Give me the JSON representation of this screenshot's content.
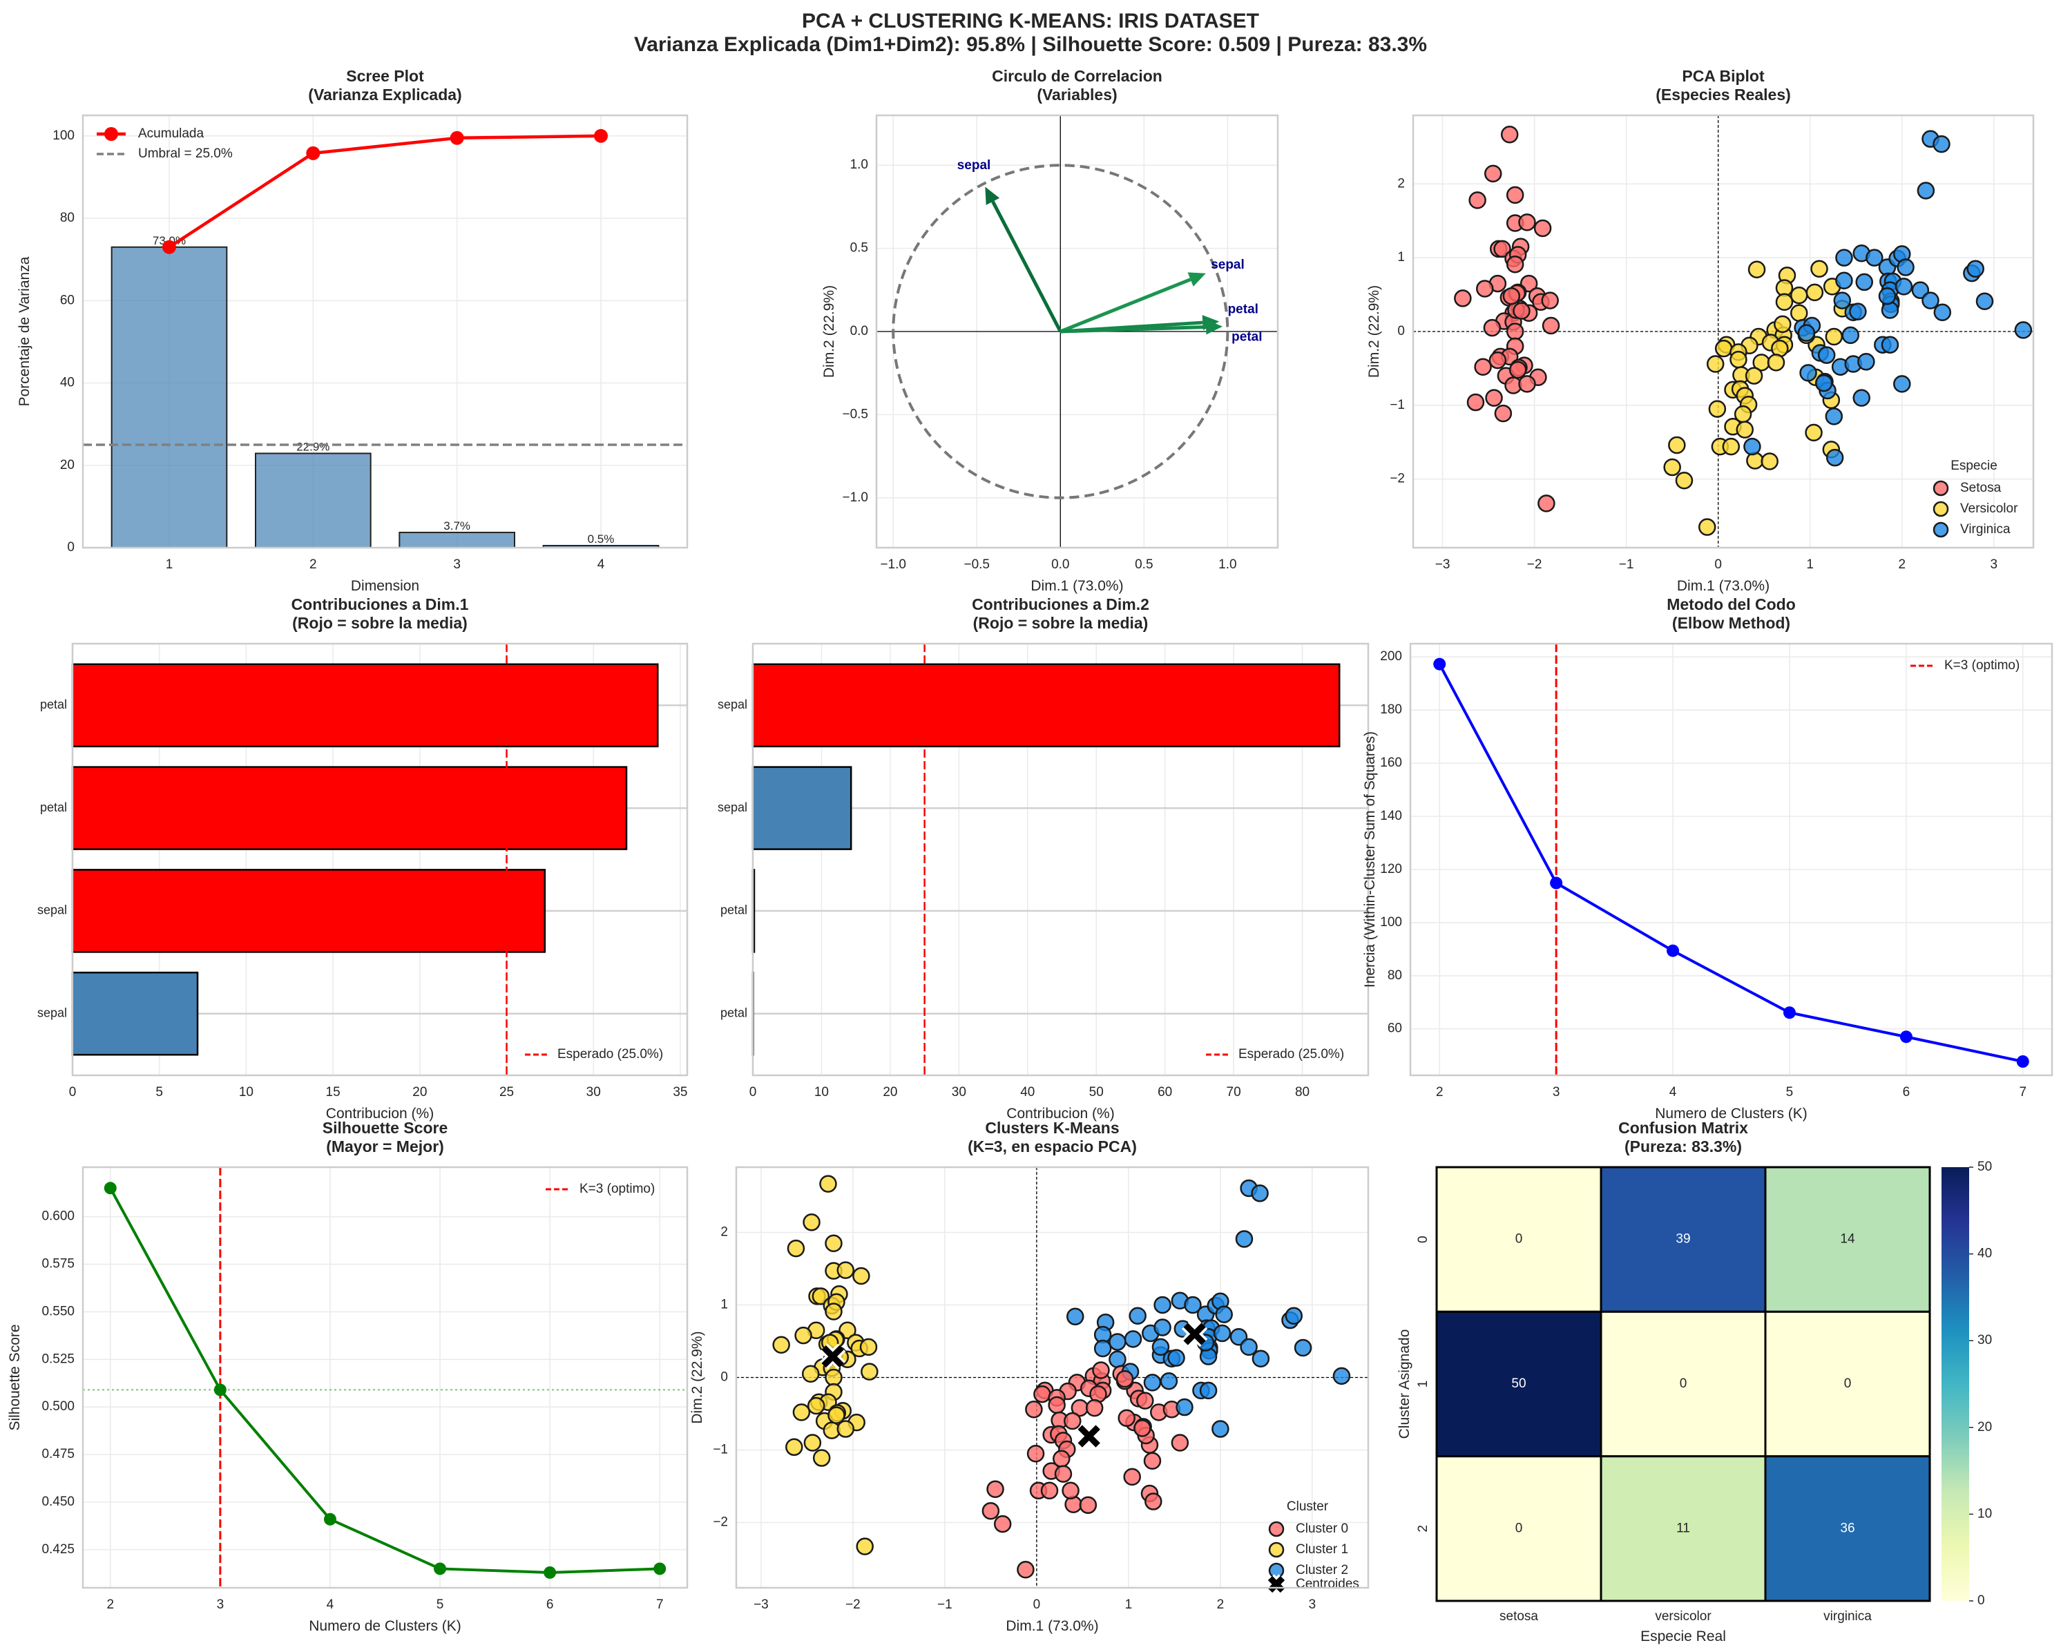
{
  "suptitle": {
    "line1": "PCA + CLUSTERING K-MEANS: IRIS DATASET",
    "line2": "Varianza Explicada (Dim1+Dim2): 95.8% | Silhouette Score: 0.509 | Pureza: 83.3%"
  },
  "colors": {
    "Setosa": "#ff6b6b",
    "Versicolor": "#fdd835",
    "Virginica": "#1e88e5",
    "Cluster 0": "#ff6b6b",
    "Cluster 1": "#fdd835",
    "Cluster 2": "#1e88e5",
    "bar": "#4682b4",
    "above_mean": "#ff0000"
  },
  "chart_data": [
    {
      "type": "bar",
      "title": "Scree Plot",
      "subtitle": "(Varianza Explicada)",
      "xlabel": "Dimension",
      "ylabel": "Porcentaje de Varianza",
      "categories": [
        1,
        2,
        3,
        4
      ],
      "values": [
        73.0,
        22.9,
        3.7,
        0.5
      ],
      "bar_labels": [
        "73.0%",
        "22.9%",
        "3.7%",
        "0.5%"
      ],
      "cumulative": {
        "name": "Acumulada",
        "values": [
          73.0,
          95.8,
          99.5,
          100.0
        ]
      },
      "threshold": {
        "name": "Umbral = 25.0%",
        "value": 25.0
      },
      "xlim": [
        0.4,
        4.6
      ],
      "ylim": [
        0,
        105
      ],
      "xticks": [
        "1",
        "2",
        "3",
        "4"
      ],
      "yticks": [
        "0",
        "20",
        "40",
        "60",
        "80",
        "100"
      ],
      "legend": "top-left",
      "grid": true
    },
    {
      "type": "scatter",
      "title": "Circulo de Correlacion",
      "subtitle": "(Variables)",
      "xlabel": "Dim.1 (73.0%)",
      "ylabel": "Dim.2 (22.9%)",
      "vectors": [
        {
          "label": "sepal",
          "x": -0.45,
          "y": 0.87,
          "color": "#0b6e3a"
        },
        {
          "label": "sepal",
          "x": 0.87,
          "y": 0.35,
          "color": "#1a9550"
        },
        {
          "label": "petal",
          "x": 0.95,
          "y": 0.06,
          "color": "#15874a"
        },
        {
          "label": "petal",
          "x": 0.97,
          "y": 0.03,
          "color": "#168a4b"
        }
      ],
      "unit_circle": true,
      "xlim": [
        -1.1,
        1.3
      ],
      "ylim": [
        -1.3,
        1.3
      ],
      "xticks": [
        "−1.0",
        "−0.5",
        "0.0",
        "0.5",
        "1.0"
      ],
      "yticks": [
        "−1.0",
        "−0.5",
        "0.0",
        "0.5",
        "1.0"
      ],
      "grid": true
    },
    {
      "type": "scatter",
      "title": "PCA Biplot",
      "subtitle": "(Especies Reales)",
      "xlabel": "Dim.1 (73.0%)",
      "ylabel": "Dim.2 (22.9%)",
      "legend_title": "Especie",
      "legend": "bottom-right",
      "xlim": [
        -3.32,
        3.43
      ],
      "ylim": [
        -2.93,
        2.93
      ],
      "xticks": [
        "−3",
        "−2",
        "−1",
        "0",
        "1",
        "2",
        "3"
      ],
      "yticks": [
        "−2",
        "−1",
        "0",
        "1",
        "2"
      ],
      "series": [
        {
          "name": "Setosa",
          "points": [
            [
              -2.27,
              2.67
            ],
            [
              -2.45,
              2.14
            ],
            [
              -2.21,
              1.85
            ],
            [
              -2.62,
              1.78
            ],
            [
              -2.21,
              1.47
            ],
            [
              -2.08,
              1.48
            ],
            [
              -1.91,
              1.4
            ],
            [
              -2.39,
              1.12
            ],
            [
              -2.35,
              1.12
            ],
            [
              -2.15,
              1.15
            ],
            [
              -2.23,
              0.99
            ],
            [
              -2.18,
              1.04
            ],
            [
              -2.21,
              0.91
            ],
            [
              -2.4,
              0.65
            ],
            [
              -2.54,
              0.58
            ],
            [
              -2.06,
              0.65
            ],
            [
              -2.78,
              0.45
            ],
            [
              -2.28,
              0.46
            ],
            [
              -2.18,
              0.53
            ],
            [
              -1.97,
              0.48
            ],
            [
              -1.93,
              0.4
            ],
            [
              -1.83,
              0.42
            ],
            [
              -2.23,
              0.25
            ],
            [
              -2.16,
              0.31
            ],
            [
              -2.06,
              0.25
            ],
            [
              -2.33,
              0.14
            ],
            [
              -2.23,
              0.13
            ],
            [
              -2.46,
              0.05
            ],
            [
              -2.21,
              0.0
            ],
            [
              -1.82,
              0.08
            ],
            [
              -2.21,
              -0.2
            ],
            [
              -2.37,
              -0.34
            ],
            [
              -2.27,
              -0.34
            ],
            [
              -2.4,
              -0.39
            ],
            [
              -2.56,
              -0.48
            ],
            [
              -2.11,
              -0.46
            ],
            [
              -2.17,
              -0.49
            ],
            [
              -2.31,
              -0.6
            ],
            [
              -1.96,
              -0.62
            ],
            [
              -2.23,
              -0.73
            ],
            [
              -2.08,
              -0.71
            ],
            [
              -2.44,
              -0.9
            ],
            [
              -2.64,
              -0.96
            ],
            [
              -2.34,
              -1.11
            ],
            [
              -1.87,
              -2.33
            ],
            [
              -2.19,
              0.52
            ],
            [
              -2.2,
              0.29
            ],
            [
              -2.14,
              0.28
            ],
            [
              -2.25,
              0.48
            ],
            [
              -2.18,
              -0.52
            ]
          ]
        },
        {
          "name": "Versicolor",
          "points": [
            [
              0.42,
              0.84
            ],
            [
              0.75,
              0.76
            ],
            [
              1.1,
              0.85
            ],
            [
              0.72,
              0.59
            ],
            [
              0.88,
              0.49
            ],
            [
              1.05,
              0.53
            ],
            [
              1.24,
              0.61
            ],
            [
              0.72,
              0.4
            ],
            [
              0.88,
              0.25
            ],
            [
              1.35,
              0.31
            ],
            [
              0.62,
              0.02
            ],
            [
              0.71,
              -0.05
            ],
            [
              0.44,
              -0.07
            ],
            [
              0.57,
              -0.15
            ],
            [
              0.72,
              -0.18
            ],
            [
              0.67,
              -0.23
            ],
            [
              1.26,
              -0.07
            ],
            [
              1.07,
              -0.18
            ],
            [
              0.09,
              -0.18
            ],
            [
              0.06,
              -0.23
            ],
            [
              0.34,
              -0.19
            ],
            [
              0.22,
              -0.28
            ],
            [
              0.22,
              -0.38
            ],
            [
              -0.03,
              -0.44
            ],
            [
              0.47,
              -0.42
            ],
            [
              0.63,
              -0.42
            ],
            [
              0.25,
              -0.59
            ],
            [
              0.39,
              -0.6
            ],
            [
              1.06,
              -0.62
            ],
            [
              0.16,
              -0.79
            ],
            [
              0.24,
              -0.78
            ],
            [
              0.29,
              -0.87
            ],
            [
              0.33,
              -0.99
            ],
            [
              -0.01,
              -1.05
            ],
            [
              0.27,
              -1.12
            ],
            [
              0.16,
              -1.29
            ],
            [
              0.29,
              -1.33
            ],
            [
              1.23,
              -0.93
            ],
            [
              1.04,
              -1.37
            ],
            [
              -0.45,
              -1.54
            ],
            [
              0.02,
              -1.56
            ],
            [
              0.14,
              -1.56
            ],
            [
              1.23,
              -1.6
            ],
            [
              -0.5,
              -1.84
            ],
            [
              0.4,
              -1.75
            ],
            [
              0.56,
              -1.76
            ],
            [
              -0.37,
              -2.02
            ],
            [
              -0.12,
              -2.65
            ],
            [
              0.7,
              0.1
            ],
            [
              0.96,
              -0.05
            ]
          ]
        },
        {
          "name": "Virginica",
          "points": [
            [
              2.31,
              2.61
            ],
            [
              2.43,
              2.54
            ],
            [
              2.26,
              1.91
            ],
            [
              1.37,
              1.0
            ],
            [
              1.56,
              1.06
            ],
            [
              1.7,
              1.0
            ],
            [
              1.84,
              0.87
            ],
            [
              1.95,
              0.99
            ],
            [
              2.0,
              1.05
            ],
            [
              2.04,
              0.87
            ],
            [
              2.76,
              0.79
            ],
            [
              2.8,
              0.85
            ],
            [
              1.37,
              0.69
            ],
            [
              1.59,
              0.67
            ],
            [
              1.85,
              0.68
            ],
            [
              1.9,
              0.68
            ],
            [
              1.87,
              0.56
            ],
            [
              2.02,
              0.61
            ],
            [
              2.2,
              0.56
            ],
            [
              1.35,
              0.42
            ],
            [
              1.88,
              0.41
            ],
            [
              1.88,
              0.37
            ],
            [
              2.31,
              0.42
            ],
            [
              2.9,
              0.41
            ],
            [
              1.87,
              0.29
            ],
            [
              1.47,
              0.26
            ],
            [
              1.52,
              0.27
            ],
            [
              2.44,
              0.26
            ],
            [
              3.32,
              0.02
            ],
            [
              0.92,
              0.05
            ],
            [
              1.02,
              0.08
            ],
            [
              0.96,
              -0.02
            ],
            [
              1.44,
              -0.05
            ],
            [
              1.79,
              -0.18
            ],
            [
              1.87,
              -0.18
            ],
            [
              1.11,
              -0.29
            ],
            [
              1.18,
              -0.32
            ],
            [
              1.33,
              -0.48
            ],
            [
              1.47,
              -0.44
            ],
            [
              1.61,
              -0.41
            ],
            [
              0.98,
              -0.56
            ],
            [
              1.16,
              -0.68
            ],
            [
              1.19,
              -0.8
            ],
            [
              2.0,
              -0.71
            ],
            [
              1.56,
              -0.9
            ],
            [
              1.26,
              -1.15
            ],
            [
              0.37,
              -1.56
            ],
            [
              1.27,
              -1.71
            ],
            [
              1.15,
              -0.7
            ],
            [
              1.84,
              0.48
            ]
          ]
        }
      ]
    },
    {
      "type": "bar",
      "orientation": "horizontal",
      "title": "Contribuciones a Dim.1",
      "subtitle": "(Rojo = sobre la media)",
      "xlabel": "Contribucion (%)",
      "categories": [
        "petal",
        "petal",
        "sepal",
        "sepal"
      ],
      "values": [
        33.7,
        31.9,
        27.2,
        7.2
      ],
      "above_mean": [
        true,
        true,
        true,
        false
      ],
      "expected": {
        "name": "Esperado (25.0%)",
        "value": 25.0
      },
      "xlim": [
        0,
        35.4
      ],
      "xticks": [
        "0",
        "5",
        "10",
        "15",
        "20",
        "25",
        "30",
        "35"
      ],
      "legend": "bottom-right"
    },
    {
      "type": "bar",
      "orientation": "horizontal",
      "title": "Contribuciones a Dim.2",
      "subtitle": "(Rojo = sobre la media)",
      "xlabel": "Contribucion (%)",
      "categories": [
        "sepal",
        "sepal",
        "petal",
        "petal"
      ],
      "values": [
        85.4,
        14.3,
        0.2,
        0.0
      ],
      "above_mean": [
        true,
        false,
        false,
        false
      ],
      "expected": {
        "name": "Esperado (25.0%)",
        "value": 25.0
      },
      "xlim": [
        0,
        89.6
      ],
      "xticks": [
        "0",
        "10",
        "20",
        "30",
        "40",
        "50",
        "60",
        "70",
        "80"
      ],
      "legend": "bottom-right"
    },
    {
      "type": "line",
      "title": "Metodo del Codo",
      "subtitle": "(Elbow Method)",
      "xlabel": "Numero de Clusters (K)",
      "ylabel": "Inercia (Within-Cluster Sum of Squares)",
      "x": [
        2,
        3,
        4,
        5,
        6,
        7
      ],
      "values": [
        197.3,
        114.9,
        89.4,
        66.1,
        57.0,
        47.7
      ],
      "color": "#0000ff",
      "optimal": {
        "name": "K=3 (optimo)",
        "value": 3
      },
      "xlim": [
        1.75,
        7.25
      ],
      "ylim": [
        42.5,
        205
      ],
      "xticks": [
        "2",
        "3",
        "4",
        "5",
        "6",
        "7"
      ],
      "yticks": [
        "60",
        "80",
        "100",
        "120",
        "140",
        "160",
        "180",
        "200"
      ],
      "legend": "top-right"
    },
    {
      "type": "line",
      "title": "Silhouette Score",
      "subtitle": "(Mayor = Mejor)",
      "xlabel": "Numero de Clusters (K)",
      "ylabel": "Silhouette Score",
      "x": [
        2,
        3,
        4,
        5,
        6,
        7
      ],
      "values": [
        0.615,
        0.509,
        0.441,
        0.415,
        0.413,
        0.415
      ],
      "color": "#008000",
      "optimal": {
        "name": "K=3 (optimo)",
        "value": 3
      },
      "reference_line": 0.509,
      "xlim": [
        1.75,
        7.25
      ],
      "ylim": [
        0.405,
        0.626
      ],
      "xticks": [
        "2",
        "3",
        "4",
        "5",
        "6",
        "7"
      ],
      "yticks": [
        "0.425",
        "0.450",
        "0.475",
        "0.500",
        "0.525",
        "0.550",
        "0.575",
        "0.600"
      ],
      "legend": "top-right"
    },
    {
      "type": "scatter",
      "title": "Clusters K-Means",
      "subtitle": "(K=3, en espacio PCA)",
      "xlabel": "Dim.1 (73.0%)",
      "ylabel": "Dim.2 (22.9%)",
      "legend_title": "Cluster",
      "legend": "bottom-right",
      "cluster_names": [
        "Cluster 0",
        "Cluster 1",
        "Cluster 2"
      ],
      "centroids_label": "Centroides",
      "centroids": [
        [
          0.57,
          -0.81
        ],
        [
          -2.22,
          0.29
        ],
        [
          1.72,
          0.6
        ]
      ],
      "xlim": [
        -3.27,
        3.61
      ],
      "ylim": [
        -2.9,
        2.9
      ],
      "xticks": [
        "−3",
        "−2",
        "−1",
        "0",
        "1",
        "2",
        "3"
      ],
      "yticks": [
        "−2",
        "−1",
        "0",
        "1",
        "2"
      ]
    },
    {
      "type": "heatmap",
      "title": "Confusion Matrix",
      "subtitle": "(Pureza: 83.3%)",
      "xlabel": "Especie Real",
      "ylabel": "Cluster Asignado",
      "columns": [
        "setosa",
        "versicolor",
        "virginica"
      ],
      "rows": [
        "0",
        "1",
        "2"
      ],
      "matrix": [
        [
          0,
          39,
          14
        ],
        [
          50,
          0,
          0
        ],
        [
          0,
          11,
          36
        ]
      ],
      "colormap": "YlGnBu",
      "colorbar": {
        "range": [
          0,
          50
        ],
        "ticks": [
          "0",
          "10",
          "20",
          "30",
          "40",
          "50"
        ]
      }
    }
  ]
}
